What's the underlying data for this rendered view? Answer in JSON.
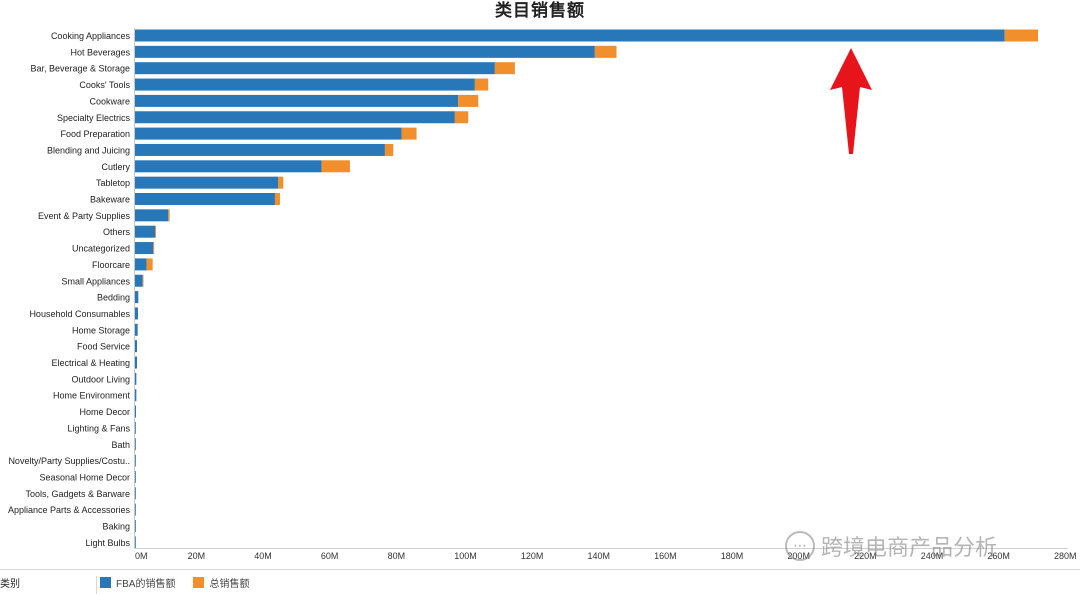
{
  "chart_data": {
    "type": "bar",
    "orientation": "horizontal",
    "stacked": true,
    "title": "类目销售额",
    "category_axis_label": "类别",
    "categories": [
      "Cooking Appliances",
      "Hot Beverages",
      "Bar, Beverage & Storage",
      "Cooks' Tools",
      "Cookware",
      "Specialty Electrics",
      "Food Preparation",
      "Blending and Juicing",
      "Cutlery",
      "Tabletop",
      "Bakeware",
      "Event & Party Supplies",
      "Others",
      "Uncategorized",
      "Floorcare",
      "Small Appliances",
      "Bedding",
      "Household Consumables",
      "Home Storage",
      "Food Service",
      "Electrical & Heating",
      "Outdoor Living",
      "Home Environment",
      "Home Decor",
      "Lighting & Fans",
      "Bath",
      "Novelty/Party Supplies/Costu..",
      "Seasonal Home Decor",
      "Tools, Gadgets & Barware",
      "Appliance Parts & Accessories",
      "Baking",
      "Light Bulbs"
    ],
    "series": [
      {
        "name": "FBA的销售额",
        "color": "#2877b8",
        "values": [
          261,
          138,
          108,
          102,
          97,
          96,
          80,
          75,
          56,
          43,
          42,
          10,
          6,
          5.5,
          3.5,
          2.3,
          1.0,
          0.9,
          0.8,
          0.6,
          0.6,
          0.4,
          0.4,
          0.3,
          0.2,
          0.2,
          0.1,
          0.1,
          0.1,
          0.1,
          0.1,
          0.1
        ]
      },
      {
        "name": "总销售额",
        "color": "#f18f2d",
        "values": [
          10,
          6.5,
          6,
          4,
          6,
          4,
          4.5,
          2.5,
          8.5,
          1.5,
          1.5,
          0.4,
          0.3,
          0.1,
          1.8,
          0.1,
          0,
          0,
          0,
          0,
          0,
          0,
          0,
          0,
          0,
          0,
          0,
          0,
          0,
          0,
          0,
          0
        ]
      }
    ],
    "x_unit": "M",
    "xlim": [
      0,
      280
    ],
    "x_ticks": [
      "0M",
      "20M",
      "40M",
      "60M",
      "80M",
      "100M",
      "120M",
      "140M",
      "160M",
      "180M",
      "200M",
      "220M",
      "240M",
      "260M",
      "280M"
    ],
    "grid": false,
    "legend_position": "bottom-left",
    "annotation": "red-upward-arrow"
  },
  "watermark": {
    "text": "跨境电商产品分析",
    "icon": "wechat-icon"
  }
}
